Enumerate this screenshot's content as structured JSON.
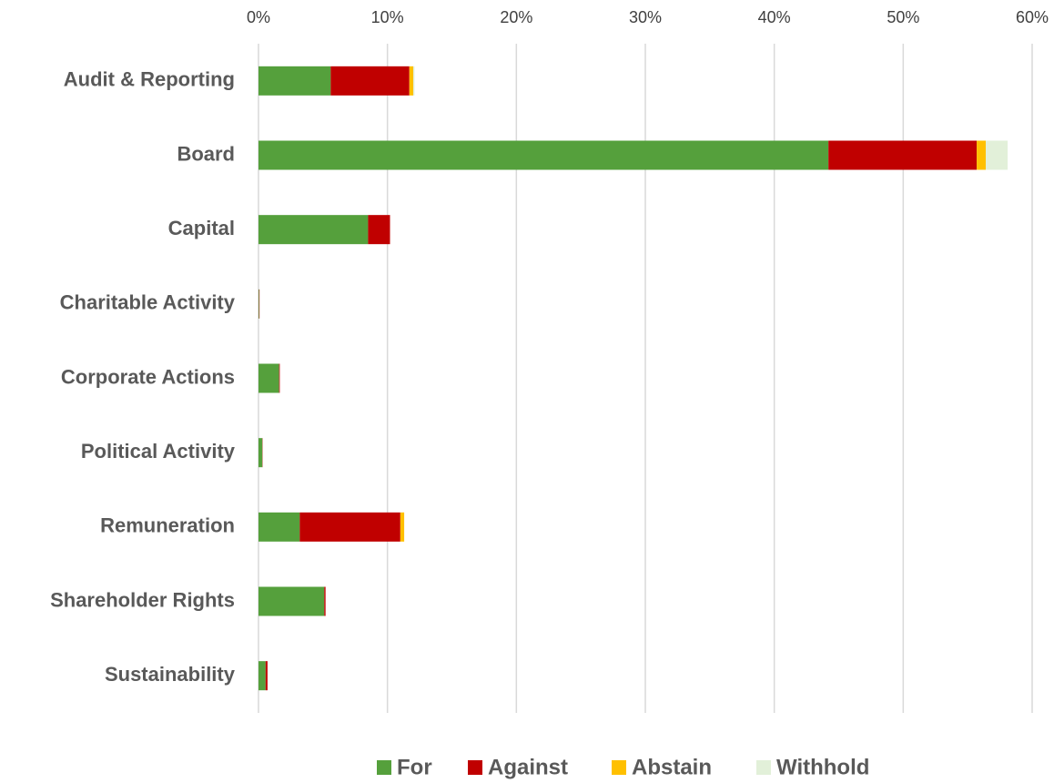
{
  "chart_data": {
    "type": "stacked_barh",
    "categories": [
      "Audit & Reporting",
      "Board",
      "Capital",
      "Charitable Activity",
      "Corporate Actions",
      "Political Activity",
      "Remuneration",
      "Shareholder Rights",
      "Sustainability"
    ],
    "series": [
      {
        "name": "For",
        "color": "#55a03c",
        "values": [
          5.6,
          44.2,
          8.5,
          0.05,
          1.6,
          0.3,
          3.2,
          5.1,
          0.55
        ]
      },
      {
        "name": "Against",
        "color": "#c00000",
        "values": [
          6.1,
          11.5,
          1.7,
          0.03,
          0.05,
          0.02,
          7.8,
          0.1,
          0.15
        ]
      },
      {
        "name": "Abstain",
        "color": "#ffc000",
        "values": [
          0.3,
          0.7,
          0,
          0,
          0,
          0,
          0.3,
          0,
          0
        ]
      },
      {
        "name": "Withhold",
        "color": "#e2f0d9",
        "values": [
          0.1,
          1.7,
          0,
          0,
          0,
          0,
          0,
          0,
          0
        ]
      }
    ],
    "xlim": [
      0,
      60
    ],
    "xticks": [
      {
        "value": 0,
        "label": "0%"
      },
      {
        "value": 10,
        "label": "10%"
      },
      {
        "value": 20,
        "label": "20%"
      },
      {
        "value": 30,
        "label": "30%"
      },
      {
        "value": 40,
        "label": "40%"
      },
      {
        "value": 50,
        "label": "50%"
      },
      {
        "value": 60,
        "label": "60%"
      }
    ],
    "grid": true
  }
}
